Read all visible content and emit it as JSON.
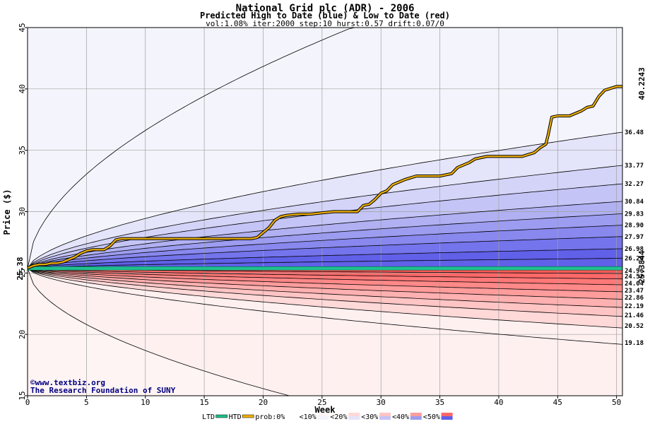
{
  "chart_data": {
    "type": "area",
    "title": "National Grid plc (ADR) - 2006",
    "subtitle": "Predicted High to Date (blue) &  Low to Date (red)",
    "params": "vol:1.08% iter:2000 step:10 hurst:0.57 drift:0.07/0",
    "xlabel": "Week",
    "ylabel": "Price ($)",
    "xlim": [
      0,
      50.5
    ],
    "ylim": [
      15,
      45
    ],
    "x_ticks": [
      0,
      5,
      10,
      15,
      20,
      25,
      30,
      35,
      40,
      45,
      50
    ],
    "y_ticks": [
      15,
      20,
      25,
      30,
      35,
      40,
      45
    ],
    "grid": true,
    "start_price": 25.38,
    "start_price_label": "25.38",
    "htd_final_label": "40.2243",
    "ltd_final_label": "25.3844",
    "upper_percentile_finals": [
      {
        "label": "36.48",
        "value": 36.48
      },
      {
        "label": "33.77",
        "value": 33.77
      },
      {
        "label": "32.27",
        "value": 32.27
      },
      {
        "label": "30.84",
        "value": 30.84
      },
      {
        "label": "29.83",
        "value": 29.83
      },
      {
        "label": "28.90",
        "value": 28.9
      },
      {
        "label": "27.97",
        "value": 27.97
      },
      {
        "label": "26.98",
        "value": 26.98
      },
      {
        "label": "26.20",
        "value": 26.2
      }
    ],
    "upper_outer_value": 45.0,
    "lower_percentile_finals": [
      {
        "label": "24.96",
        "value": 24.96
      },
      {
        "label": "24.52",
        "value": 24.52
      },
      {
        "label": "24.04",
        "value": 24.04
      },
      {
        "label": "23.47",
        "value": 23.47
      },
      {
        "label": "22.86",
        "value": 22.86
      },
      {
        "label": "22.19",
        "value": 22.19
      },
      {
        "label": "21.46",
        "value": 21.46
      },
      {
        "label": "20.52",
        "value": 20.52
      },
      {
        "label": "19.18",
        "value": 19.18
      }
    ],
    "lower_outer_value": 15.0,
    "htd_series": {
      "name": "HTD",
      "x": [
        0,
        0.5,
        1,
        1.5,
        2,
        2.5,
        3,
        3.5,
        4,
        4.5,
        5,
        5.5,
        6,
        6.5,
        7,
        7.5,
        8,
        9,
        10,
        11,
        12,
        13,
        14,
        15,
        16,
        17,
        18,
        19,
        19.5,
        20,
        20.5,
        21,
        21.5,
        22,
        23,
        24,
        25,
        26,
        27,
        28,
        28.5,
        29,
        29.5,
        30,
        30.5,
        31,
        32,
        33,
        34,
        35,
        36,
        36.5,
        37,
        37.5,
        38,
        39,
        40,
        41,
        42,
        43,
        43.5,
        44,
        44.2,
        44.5,
        45,
        46,
        47,
        47.5,
        48,
        48.5,
        49,
        50,
        50.5
      ],
      "values": [
        25.4,
        25.6,
        25.7,
        25.7,
        25.8,
        25.8,
        25.9,
        26.1,
        26.3,
        26.6,
        26.8,
        26.9,
        26.9,
        26.9,
        27.2,
        27.7,
        27.8,
        27.8,
        27.8,
        27.8,
        27.8,
        27.8,
        27.8,
        27.8,
        27.8,
        27.8,
        27.8,
        27.8,
        27.9,
        28.3,
        28.7,
        29.3,
        29.6,
        29.7,
        29.8,
        29.8,
        29.9,
        30.0,
        30.0,
        30.0,
        30.5,
        30.6,
        31.0,
        31.5,
        31.7,
        32.2,
        32.6,
        32.9,
        32.9,
        32.9,
        33.1,
        33.6,
        33.8,
        34.0,
        34.3,
        34.5,
        34.5,
        34.5,
        34.5,
        34.8,
        35.2,
        35.5,
        36.3,
        37.7,
        37.8,
        37.8,
        38.2,
        38.5,
        38.6,
        39.4,
        39.9,
        40.2,
        40.2
      ]
    },
    "ltd_series": {
      "name": "LTD",
      "value": 25.38
    },
    "legend": {
      "items": [
        {
          "key": "ltd",
          "label": "LTD",
          "color": "#20c090"
        },
        {
          "key": "htd",
          "label": "HTD",
          "color": "#f0b000"
        },
        {
          "key": "prob0",
          "label": "prob:0%"
        },
        {
          "key": "p10",
          "label": "<10%"
        },
        {
          "key": "p20",
          "label": "<20%"
        },
        {
          "key": "p30",
          "label": "<30%"
        },
        {
          "key": "p40",
          "label": "<40%"
        },
        {
          "key": "p50",
          "label": "<50%"
        }
      ]
    },
    "colors": {
      "upper_bands": [
        "#f4f4fc",
        "#e4e4fa",
        "#d4d4f8",
        "#c4c4f6",
        "#b0b0f2",
        "#9c9cf0",
        "#8888ee",
        "#7474ec",
        "#6060e8",
        "#e8e8fa"
      ],
      "lower_bands": [
        "#fff0f0",
        "#ffd8d8",
        "#ffc4c4",
        "#ffb0b0",
        "#ff9c9c",
        "#ff8888",
        "#ff7878",
        "#ff6868",
        "#ff5858",
        "#fff4f4"
      ],
      "htd_line": "#f0b000",
      "ltd_line": "#20c090",
      "htd_label": "#a08000",
      "ltd_label": "#008060",
      "start_label": "#006040"
    },
    "credit_lines": [
      "©www.textbiz.org",
      "The Research Foundation of SUNY"
    ]
  }
}
